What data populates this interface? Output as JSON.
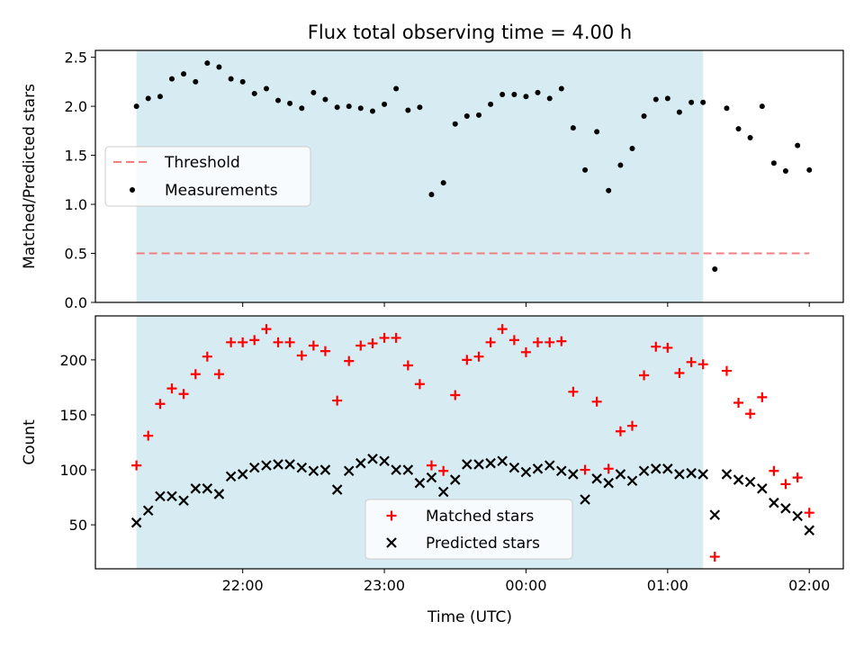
{
  "chart_data": {
    "title": "Flux total observing time = 4.00 h",
    "xlabel": "Time (UTC)",
    "x_tick_labels": [
      "22:00",
      "23:00",
      "00:00",
      "01:00",
      "02:00"
    ],
    "x_tick_hours": [
      22,
      23,
      24,
      25,
      26
    ],
    "x_range_hours": [
      20.96,
      26.24
    ],
    "shaded_band_hours": [
      21.25,
      25.25
    ],
    "colors": {
      "band": "#add8e6",
      "threshold": "#f08080",
      "measurements": "#000000",
      "matched": "#ff0000",
      "predicted": "#000000"
    },
    "panels": [
      {
        "type": "scatter",
        "ylabel": "Matched/Predicted stars",
        "ylim": [
          0,
          2.57
        ],
        "yticks": [
          0.0,
          0.5,
          1.0,
          1.5,
          2.0,
          2.5
        ],
        "ytick_labels": [
          "0.0",
          "0.5",
          "1.0",
          "1.5",
          "2.0",
          "2.5"
        ],
        "threshold": {
          "name": "Threshold",
          "value": 0.5,
          "x_range": [
            21.25,
            26.0
          ]
        },
        "legend": [
          "Threshold",
          "Measurements"
        ],
        "legend_loc": "center-left",
        "series": [
          {
            "name": "Measurements",
            "marker": "dot",
            "x": [
              21.25,
              21.333,
              21.417,
              21.5,
              21.583,
              21.667,
              21.75,
              21.833,
              21.917,
              22.0,
              22.083,
              22.167,
              22.25,
              22.333,
              22.417,
              22.5,
              22.583,
              22.667,
              22.75,
              22.833,
              22.917,
              23.0,
              23.083,
              23.167,
              23.25,
              23.333,
              23.417,
              23.5,
              23.583,
              23.667,
              23.75,
              23.833,
              23.917,
              24.0,
              24.083,
              24.167,
              24.25,
              24.333,
              24.417,
              24.5,
              24.583,
              24.667,
              24.75,
              24.833,
              24.917,
              25.0,
              25.083,
              25.167,
              25.25,
              25.333,
              25.417,
              25.5,
              25.583,
              25.667,
              25.75,
              25.833,
              25.917,
              26.0
            ],
            "y": [
              2.0,
              2.08,
              2.1,
              2.28,
              2.33,
              2.25,
              2.44,
              2.4,
              2.28,
              2.25,
              2.13,
              2.18,
              2.06,
              2.03,
              1.98,
              2.14,
              2.07,
              1.99,
              2.0,
              1.98,
              1.95,
              2.02,
              2.18,
              1.96,
              1.99,
              1.1,
              1.22,
              1.82,
              1.9,
              1.91,
              2.02,
              2.12,
              2.12,
              2.1,
              2.14,
              2.08,
              2.18,
              1.78,
              1.35,
              1.74,
              1.14,
              1.4,
              1.57,
              1.9,
              2.07,
              2.08,
              1.94,
              2.04,
              2.04,
              0.34,
              1.98,
              1.77,
              1.68,
              2.0,
              1.42,
              1.34,
              1.6,
              1.35
            ]
          }
        ]
      },
      {
        "type": "scatter",
        "ylabel": "Count",
        "ylim": [
          10,
          240
        ],
        "yticks": [
          50,
          100,
          150,
          200
        ],
        "ytick_labels": [
          "50",
          "100",
          "150",
          "200"
        ],
        "legend": [
          "Matched stars",
          "Predicted stars"
        ],
        "legend_loc": "lower-center",
        "series": [
          {
            "name": "Matched stars",
            "marker": "plus",
            "x": [
              21.25,
              21.333,
              21.417,
              21.5,
              21.583,
              21.667,
              21.75,
              21.833,
              21.917,
              22.0,
              22.083,
              22.167,
              22.25,
              22.333,
              22.417,
              22.5,
              22.583,
              22.667,
              22.75,
              22.833,
              22.917,
              23.0,
              23.083,
              23.167,
              23.25,
              23.333,
              23.417,
              23.5,
              23.583,
              23.667,
              23.75,
              23.833,
              23.917,
              24.0,
              24.083,
              24.167,
              24.25,
              24.333,
              24.417,
              24.5,
              24.583,
              24.667,
              24.75,
              24.833,
              24.917,
              25.0,
              25.083,
              25.167,
              25.25,
              25.333,
              25.417,
              25.5,
              25.583,
              25.667,
              25.75,
              25.833,
              25.917,
              26.0
            ],
            "y": [
              104,
              131,
              160,
              174,
              169,
              187,
              203,
              187,
              216,
              216,
              218,
              228,
              216,
              216,
              204,
              213,
              208,
              163,
              199,
              213,
              215,
              220,
              220,
              195,
              178,
              104,
              99,
              168,
              200,
              203,
              216,
              228,
              218,
              207,
              216,
              216,
              217,
              171,
              100,
              162,
              101,
              135,
              140,
              186,
              212,
              211,
              188,
              198,
              196,
              21,
              190,
              161,
              151,
              166,
              99,
              87,
              93,
              61
            ]
          },
          {
            "name": "Predicted stars",
            "marker": "x",
            "x": [
              21.25,
              21.333,
              21.417,
              21.5,
              21.583,
              21.667,
              21.75,
              21.833,
              21.917,
              22.0,
              22.083,
              22.167,
              22.25,
              22.333,
              22.417,
              22.5,
              22.583,
              22.667,
              22.75,
              22.833,
              22.917,
              23.0,
              23.083,
              23.167,
              23.25,
              23.333,
              23.417,
              23.5,
              23.583,
              23.667,
              23.75,
              23.833,
              23.917,
              24.0,
              24.083,
              24.167,
              24.25,
              24.333,
              24.417,
              24.5,
              24.583,
              24.667,
              24.75,
              24.833,
              24.917,
              25.0,
              25.083,
              25.167,
              25.25,
              25.333,
              25.417,
              25.5,
              25.583,
              25.667,
              25.75,
              25.833,
              25.917,
              26.0
            ],
            "y": [
              52,
              63,
              76,
              76,
              72,
              83,
              83,
              78,
              94,
              96,
              102,
              104,
              105,
              105,
              102,
              99,
              100,
              82,
              99,
              106,
              110,
              108,
              100,
              100,
              88,
              93,
              80,
              91,
              105,
              105,
              106,
              108,
              102,
              98,
              101,
              104,
              99,
              96,
              73,
              92,
              88,
              96,
              90,
              99,
              101,
              101,
              96,
              97,
              96,
              59,
              96,
              91,
              89,
              83,
              70,
              65,
              58,
              45
            ]
          }
        ]
      }
    ]
  }
}
